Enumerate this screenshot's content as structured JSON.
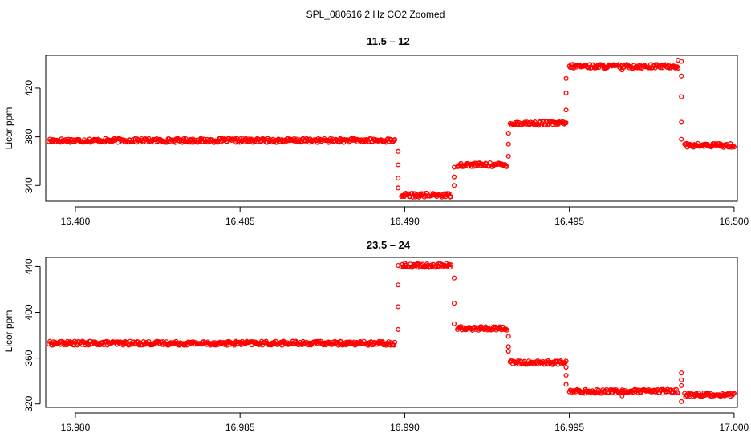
{
  "figure_title": "SPL_080616  2 Hz CO2 Zoomed",
  "chart_data": [
    {
      "type": "scatter",
      "title": "11.5 – 12",
      "xlabel": "",
      "ylabel": "Licor ppm",
      "xlim": [
        16.4791,
        16.5001
      ],
      "ylim": [
        327,
        447
      ],
      "xticks": [
        16.48,
        16.485,
        16.49,
        16.495,
        16.5
      ],
      "xtick_labels": [
        "16.480",
        "16.485",
        "16.490",
        "16.495",
        "16.500"
      ],
      "yticks": [
        340,
        380,
        420
      ],
      "ytick_labels": [
        "340",
        "380",
        "420"
      ],
      "marker": "open-circle",
      "color": "#ff0000",
      "grid": false,
      "series": [
        {
          "segments": [
            {
              "x_start": 16.4792,
              "x_end": 16.4897,
              "y": 377
            },
            {
              "x_start": 16.4899,
              "x_end": 16.4914,
              "y": 332
            },
            {
              "x_start": 16.4916,
              "x_end": 16.4931,
              "y": 357
            },
            {
              "x_start": 16.4932,
              "x_end": 16.4949,
              "y": 391
            },
            {
              "x_start": 16.495,
              "x_end": 16.4983,
              "y": 438
            },
            {
              "x_start": 16.4985,
              "x_end": 16.5,
              "y": 373
            }
          ],
          "transitions": [
            {
              "x": 16.4898,
              "y": [
                368,
                357,
                346,
                338
              ]
            },
            {
              "x": 16.4915,
              "y": [
                340,
                347,
                355
              ]
            },
            {
              "x": 16.49315,
              "y": [
                364,
                374,
                383
              ]
            },
            {
              "x": 16.4949,
              "y": [
                402,
                416,
                428
              ]
            },
            {
              "x": 16.4984,
              "y": [
                442,
                430,
                413,
                392,
                378
              ]
            }
          ],
          "outliers": [
            {
              "x": 16.4966,
              "y": 435
            },
            {
              "x": 16.4983,
              "y": 443
            }
          ]
        }
      ]
    },
    {
      "type": "scatter",
      "title": "23.5 – 24",
      "xlabel": "",
      "ylabel": "Licor ppm",
      "xlim": [
        16.9791,
        17.0001
      ],
      "ylim": [
        317,
        448
      ],
      "xticks": [
        16.98,
        16.985,
        16.99,
        16.995,
        17.0
      ],
      "xtick_labels": [
        "16.980",
        "16.985",
        "16.990",
        "16.995",
        "17.000"
      ],
      "yticks": [
        320,
        360,
        400,
        440
      ],
      "ytick_labels": [
        "320",
        "360",
        "400",
        "440"
      ],
      "marker": "open-circle",
      "color": "#ff0000",
      "grid": false,
      "series": [
        {
          "segments": [
            {
              "x_start": 16.9792,
              "x_end": 16.9897,
              "y": 373
            },
            {
              "x_start": 16.9899,
              "x_end": 16.9914,
              "y": 441
            },
            {
              "x_start": 16.9916,
              "x_end": 16.9931,
              "y": 386
            },
            {
              "x_start": 16.9932,
              "x_end": 16.9949,
              "y": 356
            },
            {
              "x_start": 16.995,
              "x_end": 16.9983,
              "y": 331
            },
            {
              "x_start": 16.9985,
              "x_end": 17.0,
              "y": 328
            }
          ],
          "transitions": [
            {
              "x": 16.9898,
              "y": [
                385,
                405,
                424,
                441
              ]
            },
            {
              "x": 16.9915,
              "y": [
                430,
                408,
                390
              ]
            },
            {
              "x": 16.99315,
              "y": [
                379,
                370,
                366
              ]
            },
            {
              "x": 16.9949,
              "y": [
                352,
                345,
                337
              ]
            },
            {
              "x": 16.9984,
              "y": [
                347,
                341,
                336,
                322
              ]
            }
          ],
          "outliers": [
            {
              "x": 16.9966,
              "y": 327
            }
          ]
        }
      ]
    }
  ]
}
